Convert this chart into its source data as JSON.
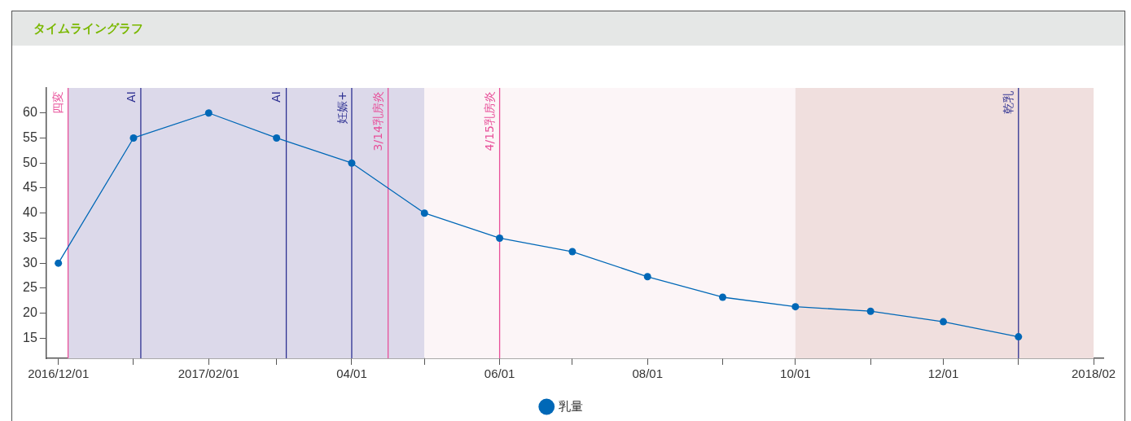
{
  "chart_data": {
    "type": "line",
    "title": "タイムライングラフ",
    "x": [
      "2016-12-01",
      "2017-01-01",
      "2017-02-01",
      "2017-03-01",
      "2017-04-01",
      "2017-05-01",
      "2017-06-01",
      "2017-07-01",
      "2017-08-01",
      "2017-09-01",
      "2017-10-01",
      "2017-11-01",
      "2017-12-01",
      "2018-01-01"
    ],
    "series": [
      {
        "name": "乳量",
        "color": "#0068b7",
        "values": [
          30,
          55,
          60,
          55,
          50,
          40,
          35,
          32.3,
          27.3,
          23.2,
          21.3,
          20.4,
          18.3,
          15.3
        ]
      }
    ],
    "xlim": [
      "2016-11-26",
      "2018-02-05"
    ],
    "xticks": [
      {
        "value": "2016-12-01",
        "label": "2016/12/01"
      },
      {
        "value": "2017-01-01",
        "label": null
      },
      {
        "value": "2017-02-01",
        "label": "2017/02/01"
      },
      {
        "value": "2017-03-01",
        "label": null
      },
      {
        "value": "2017-04-01",
        "label": "04/01"
      },
      {
        "value": "2017-05-01",
        "label": null
      },
      {
        "value": "2017-06-01",
        "label": "06/01"
      },
      {
        "value": "2017-07-01",
        "label": null
      },
      {
        "value": "2017-08-01",
        "label": "08/01"
      },
      {
        "value": "2017-09-01",
        "label": null
      },
      {
        "value": "2017-10-01",
        "label": "10/01"
      },
      {
        "value": "2017-11-01",
        "label": null
      },
      {
        "value": "2017-12-01",
        "label": "12/01"
      },
      {
        "value": "2018-01-01",
        "label": null
      },
      {
        "value": "2018-02-01",
        "label": "2018/02"
      }
    ],
    "ylim": [
      11,
      65
    ],
    "yticks": [
      15,
      20,
      25,
      30,
      35,
      40,
      45,
      50,
      55,
      60
    ],
    "bands": [
      {
        "axis": "x",
        "from": "2016-12-05",
        "to": "2017-05-01",
        "color": "#dcd9ea"
      },
      {
        "axis": "x",
        "from": "2017-05-01",
        "to": "2017-10-01",
        "color": "#fcf5f7"
      },
      {
        "axis": "x",
        "from": "2017-10-01",
        "to": "2018-02-01",
        "color": "#f0dfde"
      }
    ],
    "ref_lines": [
      {
        "axis": "x",
        "value": "2016-12-05",
        "label": "四変",
        "color": "#e8509a"
      },
      {
        "axis": "x",
        "value": "2017-01-04",
        "label": "AI",
        "color": "#2e3192"
      },
      {
        "axis": "x",
        "value": "2017-03-05",
        "label": "AI",
        "color": "#2e3192"
      },
      {
        "axis": "x",
        "value": "2017-04-01",
        "label": "妊娠+",
        "color": "#2e3192"
      },
      {
        "axis": "x",
        "value": "2017-04-16",
        "label": "3/14乳房炎",
        "color": "#e8509a"
      },
      {
        "axis": "x",
        "value": "2017-06-01",
        "label": "4/15乳房炎",
        "color": "#e8509a"
      },
      {
        "axis": "x",
        "value": "2018-01-01",
        "label": "乾乳",
        "color": "#2e3192"
      }
    ],
    "grid": false,
    "legend": "bottom",
    "marker": "circle",
    "line_style": "solid"
  }
}
